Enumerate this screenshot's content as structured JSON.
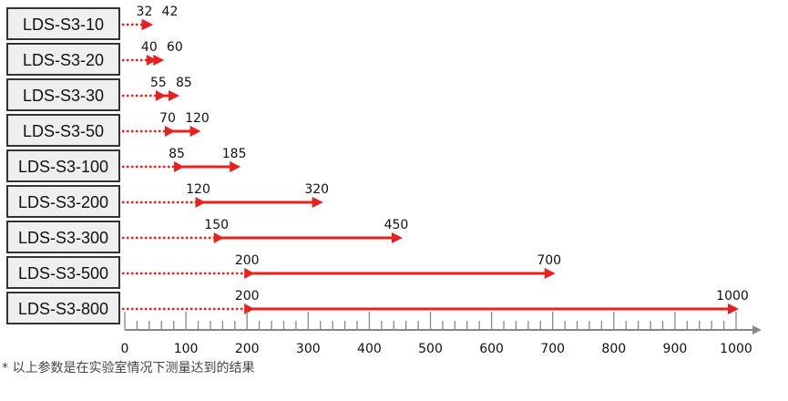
{
  "chart_data": {
    "type": "range-arrow",
    "xlim": [
      0,
      1000
    ],
    "x_ticks": [
      0,
      100,
      200,
      300,
      400,
      500,
      600,
      700,
      800,
      900,
      1000
    ],
    "minor_tick_step": 20,
    "rows": [
      {
        "label": "LDS-S3-10",
        "start": 32,
        "end": 42
      },
      {
        "label": "LDS-S3-20",
        "start": 40,
        "end": 60
      },
      {
        "label": "LDS-S3-30",
        "start": 55,
        "end": 85
      },
      {
        "label": "LDS-S3-50",
        "start": 70,
        "end": 120
      },
      {
        "label": "LDS-S3-100",
        "start": 85,
        "end": 185
      },
      {
        "label": "LDS-S3-200",
        "start": 120,
        "end": 320
      },
      {
        "label": "LDS-S3-300",
        "start": 150,
        "end": 450
      },
      {
        "label": "LDS-S3-500",
        "start": 200,
        "end": 700
      },
      {
        "label": "LDS-S3-800",
        "start": 200,
        "end": 1000
      }
    ],
    "colors": {
      "arrow": "#e8201e",
      "axis": "#888888",
      "box_fill": "#efefef",
      "box_border": "#333333"
    }
  },
  "footnote": "* 以上参数是在实验室情况下测量达到的结果"
}
